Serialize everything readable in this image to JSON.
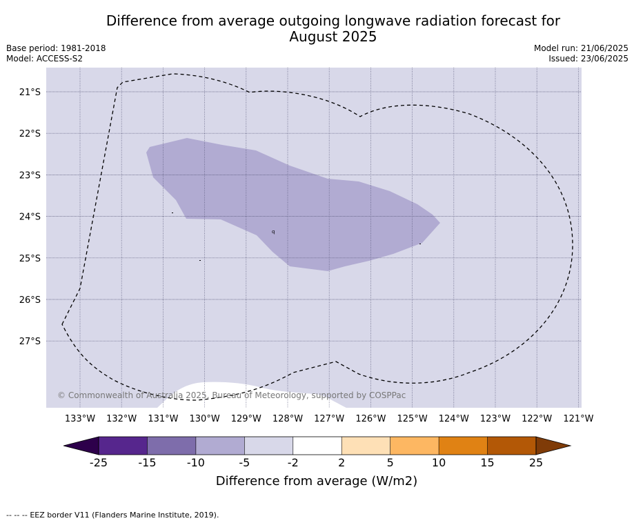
{
  "title_line1": "Difference from average outgoing longwave radiation forecast for",
  "title_line2": "August 2025",
  "meta_left": {
    "base_period": "Base period: 1981-2018",
    "model": "Model: ACCESS-S2"
  },
  "meta_right": {
    "model_run": "Model run: 21/06/2025",
    "issued": "Issued: 23/06/2025"
  },
  "copyright": "© Commonwealth of Australia 2025, Bureau of Meteorology, supported by COSPPac",
  "map": {
    "lat_labels": [
      "21°S",
      "22°S",
      "23°S",
      "24°S",
      "25°S",
      "26°S",
      "27°S"
    ],
    "lon_labels": [
      "133°W",
      "132°W",
      "131°W",
      "130°W",
      "129°W",
      "128°W",
      "127°W",
      "126°W",
      "125°W",
      "124°W",
      "123°W",
      "122°W",
      "121°W"
    ],
    "background_color": "#d8d8e9",
    "anomaly_color": "#b1abd2",
    "zero_color": "#ffffff"
  },
  "colorbar": {
    "label": "Difference from average (W/m2)",
    "ticks": [
      "-25",
      "-15",
      "-10",
      "-5",
      "-2",
      "2",
      "5",
      "10",
      "15",
      "25"
    ],
    "colors": [
      "#56268d",
      "#7e6dab",
      "#b1abd2",
      "#d8d8e9",
      "#ffffff",
      "#fee0b6",
      "#fdb762",
      "#e08214",
      "#b35806"
    ],
    "low_extend_color": "#2d004b",
    "high_extend_color": "#7f3b08"
  },
  "footnote": {
    "dash": "--  --  --",
    "text": "EEZ border V11 (Flanders Marine Institute, 2019)."
  }
}
